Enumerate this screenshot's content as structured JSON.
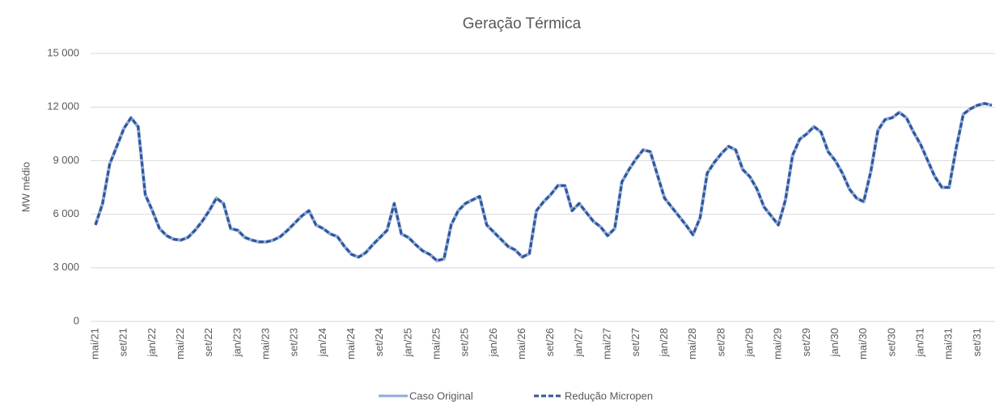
{
  "chart_data": {
    "type": "line",
    "title": "Geração Térmica",
    "y_label": "MW médio",
    "categories": [
      "mai/21",
      null,
      null,
      null,
      "set/21",
      null,
      null,
      null,
      "jan/22",
      null,
      null,
      null,
      "mai/22",
      null,
      null,
      null,
      "set/22",
      null,
      null,
      null,
      "jan/23",
      null,
      null,
      null,
      "mai/23",
      null,
      null,
      null,
      "set/23",
      null,
      null,
      null,
      "jan/24",
      null,
      null,
      null,
      "mai/24",
      null,
      null,
      null,
      "set/24",
      null,
      null,
      null,
      "jan/25",
      null,
      null,
      null,
      "mai/25",
      null,
      null,
      null,
      "set/25",
      null,
      null,
      null,
      "jan/26",
      null,
      null,
      null,
      "mai/26",
      null,
      null,
      null,
      "set/26",
      null,
      null,
      null,
      "jan/27",
      null,
      null,
      null,
      "mai/27",
      null,
      null,
      null,
      "set/27",
      null,
      null,
      null,
      "jan/28",
      null,
      null,
      null,
      "mai/28",
      null,
      null,
      null,
      "set/28",
      null,
      null,
      null,
      "jan/29",
      null,
      null,
      null,
      "mai/29",
      null,
      null,
      null,
      "set/29",
      null,
      null,
      null,
      "jan/30",
      null,
      null,
      null,
      "mai/30",
      null,
      null,
      null,
      "set/30",
      null,
      null,
      null,
      "jan/31",
      null,
      null,
      null,
      "mai/31",
      null,
      null,
      null,
      "set/31",
      null,
      null
    ],
    "series": [
      {
        "name": "Caso Original",
        "color": "#8eaadb",
        "dashed": false,
        "values": [
          5400,
          6600,
          8800,
          9800,
          10800,
          11400,
          10900,
          7100,
          6200,
          5200,
          4800,
          4600,
          4550,
          4700,
          5100,
          5600,
          6200,
          6900,
          6600,
          5200,
          5100,
          4700,
          4550,
          4450,
          4450,
          4550,
          4750,
          5100,
          5500,
          5900,
          6200,
          5400,
          5200,
          4900,
          4750,
          4200,
          3750,
          3600,
          3850,
          4300,
          4700,
          5100,
          6600,
          4900,
          4700,
          4300,
          3950,
          3750,
          3400,
          3500,
          5400,
          6200,
          6600,
          6800,
          7000,
          5400,
          5000,
          4600,
          4200,
          4000,
          3600,
          3800,
          6200,
          6700,
          7100,
          7600,
          7600,
          6200,
          6600,
          6100,
          5600,
          5300,
          4800,
          5200,
          7800,
          8500,
          9100,
          9600,
          9500,
          8200,
          6900,
          6400,
          5900,
          5400,
          4850,
          5800,
          8300,
          8900,
          9400,
          9800,
          9600,
          8500,
          8100,
          7400,
          6400,
          5900,
          5400,
          6800,
          9300,
          10200,
          10500,
          10900,
          10600,
          9500,
          9000,
          8300,
          7400,
          6900,
          6700,
          8400,
          10700,
          11300,
          11400,
          11700,
          11400,
          10600,
          9900,
          9000,
          8100,
          7500,
          7500,
          9700,
          11600,
          11900,
          12100,
          12200,
          12100
        ]
      },
      {
        "name": "Redução Micropen",
        "color": "#2f5597",
        "dashed": true,
        "values": [
          5400,
          6600,
          8800,
          9800,
          10800,
          11400,
          10900,
          7100,
          6200,
          5200,
          4800,
          4600,
          4550,
          4700,
          5100,
          5600,
          6200,
          6900,
          6600,
          5200,
          5100,
          4700,
          4550,
          4450,
          4450,
          4550,
          4750,
          5100,
          5500,
          5900,
          6200,
          5400,
          5200,
          4900,
          4750,
          4200,
          3750,
          3600,
          3850,
          4300,
          4700,
          5100,
          6600,
          4900,
          4700,
          4300,
          3950,
          3750,
          3400,
          3500,
          5400,
          6200,
          6600,
          6800,
          7000,
          5400,
          5000,
          4600,
          4200,
          4000,
          3600,
          3800,
          6200,
          6700,
          7100,
          7600,
          7600,
          6200,
          6600,
          6100,
          5600,
          5300,
          4800,
          5200,
          7800,
          8500,
          9100,
          9600,
          9500,
          8200,
          6900,
          6400,
          5900,
          5400,
          4850,
          5800,
          8300,
          8900,
          9400,
          9800,
          9600,
          8500,
          8100,
          7400,
          6400,
          5900,
          5400,
          6800,
          9300,
          10200,
          10500,
          10900,
          10600,
          9500,
          9000,
          8300,
          7400,
          6900,
          6700,
          8400,
          10700,
          11300,
          11400,
          11700,
          11400,
          10600,
          9900,
          9000,
          8100,
          7500,
          7500,
          9700,
          11600,
          11900,
          12100,
          12200,
          12100
        ]
      }
    ],
    "ylim": [
      0,
      15000
    ],
    "yticks": [
      0,
      {
        "value": 3000,
        "label": "3 000"
      },
      {
        "value": 6000,
        "label": "6 000"
      },
      {
        "value": 9000,
        "label": "9 000"
      },
      {
        "value": 12000,
        "label": "12 000"
      },
      {
        "value": 15000,
        "label": "15 000"
      }
    ],
    "grid": true,
    "legend": "bottom"
  }
}
